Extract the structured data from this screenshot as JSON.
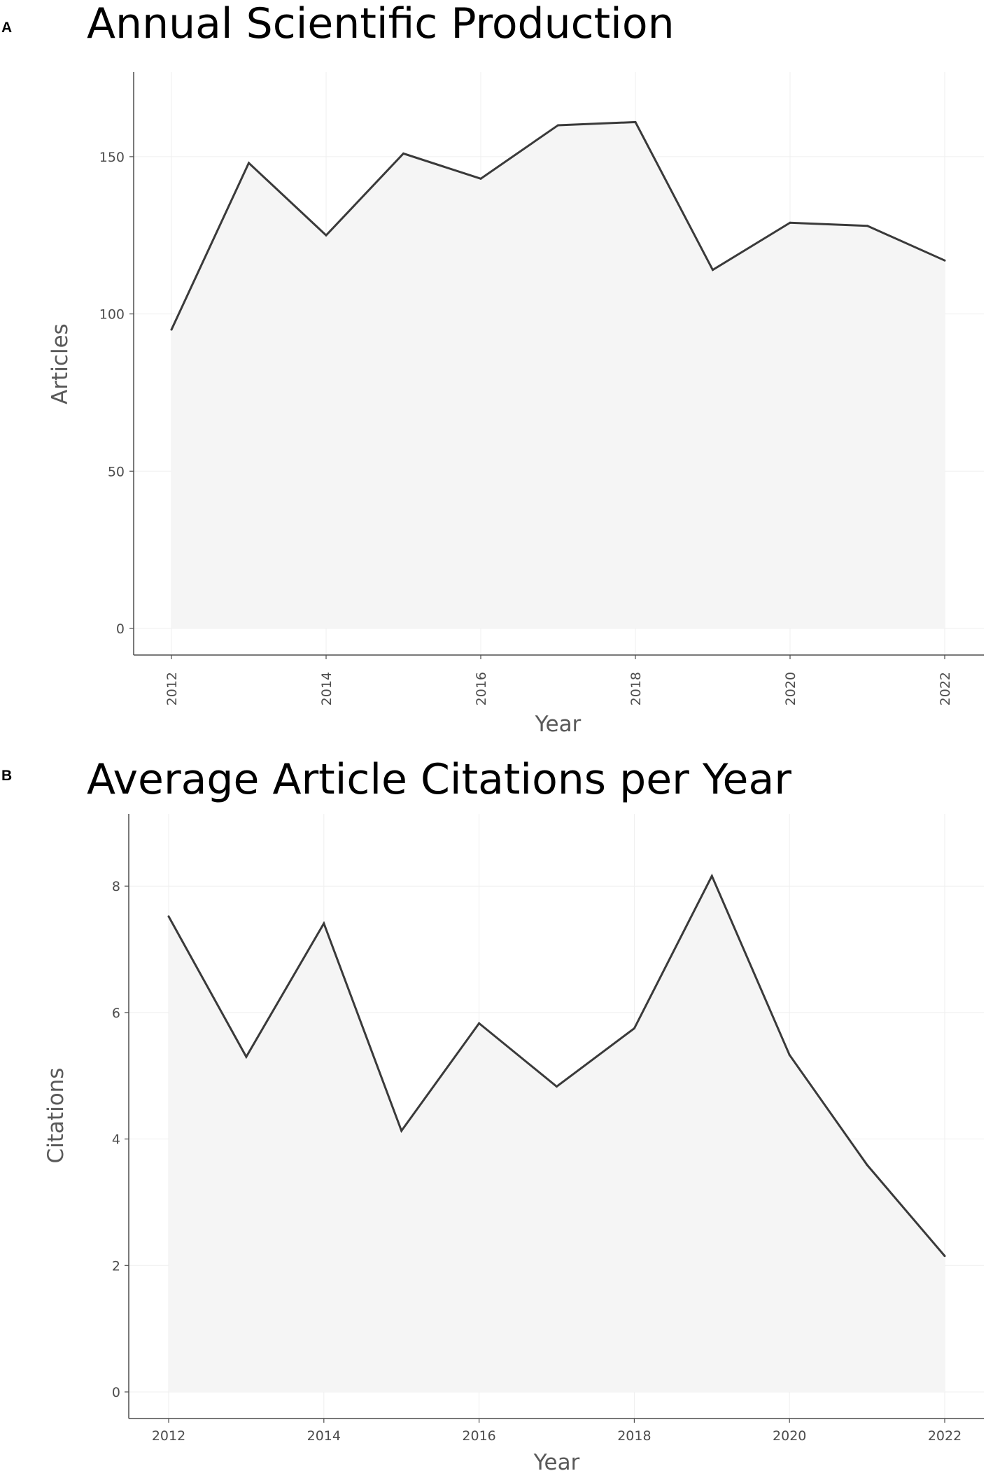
{
  "chart_data": [
    {
      "panel": "A",
      "type": "area",
      "title": "Annual Scientific Production",
      "xlabel": "Year",
      "ylabel": "Articles",
      "x": [
        2012,
        2013,
        2014,
        2015,
        2016,
        2017,
        2018,
        2019,
        2020,
        2021,
        2022
      ],
      "values": [
        95,
        148,
        125,
        151,
        143,
        160,
        161,
        114,
        129,
        128,
        117
      ],
      "xticks": [
        "2012",
        "2014",
        "2016",
        "2018",
        "2020",
        "2022"
      ],
      "yticks": [
        "0",
        "50",
        "100",
        "150"
      ],
      "xlim": [
        2012,
        2022
      ],
      "ylim": [
        0,
        170
      ],
      "xtick_rotation": "vertical",
      "grid": true,
      "line_color": "#3a3a3a",
      "fill_color": "#f5f5f5"
    },
    {
      "panel": "B",
      "type": "area",
      "title": "Average Article Citations per Year",
      "xlabel": "Year",
      "ylabel": "Citations",
      "x": [
        2012,
        2013,
        2014,
        2015,
        2016,
        2017,
        2018,
        2019,
        2020,
        2021,
        2022
      ],
      "values": [
        7.52,
        5.3,
        7.41,
        4.13,
        5.83,
        4.83,
        5.75,
        8.16,
        5.33,
        3.59,
        2.15
      ],
      "xticks": [
        "2012",
        "2014",
        "2016",
        "2018",
        "2020",
        "2022"
      ],
      "yticks": [
        "0",
        "2",
        "4",
        "6",
        "8"
      ],
      "xlim": [
        2012,
        2022
      ],
      "ylim": [
        0,
        8.6
      ],
      "xtick_rotation": "horizontal",
      "grid": true,
      "line_color": "#3a3a3a",
      "fill_color": "#f5f5f5"
    }
  ]
}
